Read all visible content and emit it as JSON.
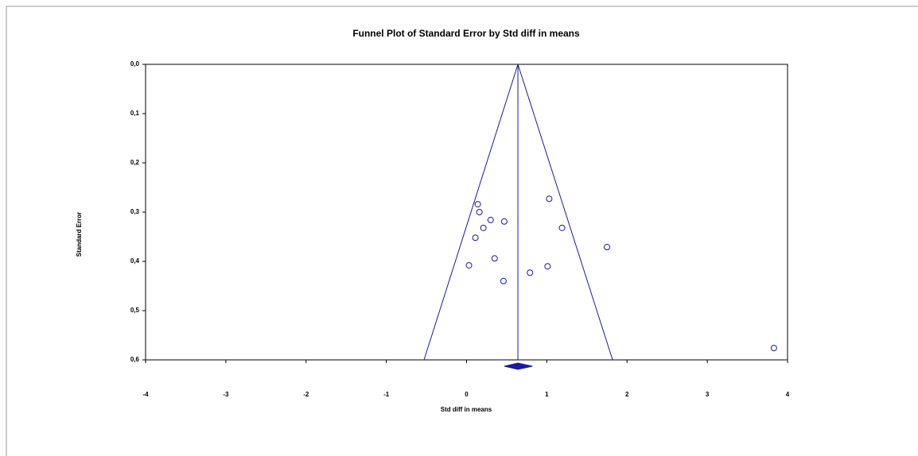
{
  "chart_data": {
    "type": "funnel",
    "title": "Funnel Plot of Standard Error by Std diff in means",
    "x_label": "Std diff in means",
    "y_label": "Standard Error",
    "xlim": [
      -4,
      4
    ],
    "xticks": [
      -4,
      -3,
      -2,
      -1,
      0,
      1,
      2,
      3,
      4
    ],
    "ylim": [
      0,
      0.6
    ],
    "yticks": [
      {
        "value": 0,
        "label": "0,0"
      },
      {
        "value": 0.1,
        "label": "0,1"
      },
      {
        "value": 0.2,
        "label": "0,2"
      },
      {
        "value": 0.3,
        "label": "0,3"
      },
      {
        "value": 0.4,
        "label": "0,4"
      },
      {
        "value": 0.5,
        "label": "0,5"
      },
      {
        "value": 0.6,
        "label": "0,6"
      }
    ],
    "y_reversed": true,
    "color": "#1a1aa0",
    "series": [
      {
        "x": [
          0.14,
          0.16,
          0.3,
          0.47,
          0.21,
          0.11,
          0.35,
          0.03,
          0.46,
          1.03,
          1.19,
          1.75,
          1.01,
          0.79,
          3.83
        ],
        "values": [
          0.284,
          0.3,
          0.316,
          0.319,
          0.332,
          0.352,
          0.394,
          0.408,
          0.44,
          0.273,
          0.332,
          0.371,
          0.41,
          0.423,
          0.576
        ]
      }
    ],
    "combined": {
      "estimate": 0.64,
      "lower": 0.47,
      "upper": 0.82
    },
    "funnel_bottom": [
      -0.53,
      1.82
    ]
  }
}
